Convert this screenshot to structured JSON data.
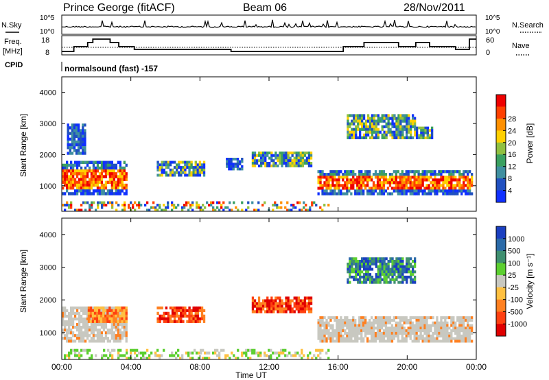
{
  "header": {
    "station": "Prince George (fitACF)",
    "beam": "Beam 06",
    "date": "28/Nov/2011"
  },
  "top_panels": {
    "nsky_label": "N.Sky",
    "nsky_ticks": [
      "10^5",
      "10^0"
    ],
    "nsearch_label": "N.Search",
    "nsearch_ticks": [
      "10^5",
      "10^0"
    ],
    "freq_label_1": "Freq.",
    "freq_label_2": "[MHz]",
    "freq_ticks": [
      "18",
      "8"
    ],
    "nave_label": "Nave",
    "nave_ticks": [
      "60",
      "0"
    ],
    "cpid_label": "CPID",
    "cpid_text": "normalsound (fast) -157"
  },
  "chart_data": [
    {
      "type": "heatmap",
      "name": "power",
      "ylabel": "Slant Range [km]",
      "xlabel": "Time UT",
      "ylim": [
        180,
        4500
      ],
      "xlim": [
        0,
        24
      ],
      "yticks": [
        "1000",
        "2000",
        "3000",
        "4000"
      ],
      "colorbar": {
        "label": "Power [dB]",
        "ticks": [
          "4",
          "8",
          "12",
          "16",
          "20",
          "24",
          "28"
        ],
        "colors": [
          "#1030ff",
          "#2050c0",
          "#3f8fa0",
          "#3aa060",
          "#90c040",
          "#ffd000",
          "#ff9000",
          "#ff4000",
          "#ee0000"
        ]
      },
      "regions": [
        {
          "t0": 0.0,
          "t1": 3.8,
          "r0": 700,
          "r1": 1800,
          "level": "high"
        },
        {
          "t0": 0.3,
          "t1": 1.4,
          "r0": 2000,
          "r1": 3000,
          "level": "low"
        },
        {
          "t0": 5.5,
          "t1": 8.3,
          "r0": 1300,
          "r1": 1800,
          "level": "mid"
        },
        {
          "t0": 9.5,
          "t1": 10.5,
          "r0": 1500,
          "r1": 1900,
          "level": "low"
        },
        {
          "t0": 11.0,
          "t1": 14.5,
          "r0": 1600,
          "r1": 2100,
          "level": "mid"
        },
        {
          "t0": 14.8,
          "t1": 23.8,
          "r0": 700,
          "r1": 1500,
          "level": "high"
        },
        {
          "t0": 16.5,
          "t1": 20.5,
          "r0": 2500,
          "r1": 3300,
          "level": "mid"
        },
        {
          "t0": 20.5,
          "t1": 21.5,
          "r0": 2500,
          "r1": 2900,
          "level": "mid"
        },
        {
          "t0": 0.0,
          "t1": 15.5,
          "r0": 180,
          "r1": 500,
          "level": "noise"
        }
      ]
    },
    {
      "type": "heatmap",
      "name": "velocity",
      "ylabel": "Slant Range [km]",
      "xlabel": "Time UT",
      "ylim": [
        180,
        4500
      ],
      "xlim": [
        0,
        24
      ],
      "yticks": [
        "1000",
        "2000",
        "3000",
        "4000"
      ],
      "xticks": [
        "00:00",
        "04:00",
        "08:00",
        "12:00",
        "16:00",
        "20:00",
        "00:00"
      ],
      "colorbar": {
        "label": "Velocity [m s⁻¹]",
        "ticks": [
          "1000",
          "500",
          "100",
          "25",
          "-25",
          "-100",
          "-500",
          "-1000"
        ],
        "colors": [
          "#1a3fc0",
          "#2a6aa8",
          "#3f8f70",
          "#5ccf30",
          "#c8c8c0",
          "#ffc040",
          "#ff8020",
          "#ff4010",
          "#e00000"
        ]
      },
      "regions": [
        {
          "t0": 0.0,
          "t1": 3.8,
          "r0": 700,
          "r1": 1800,
          "level": "ground"
        },
        {
          "t0": 1.5,
          "t1": 3.8,
          "r0": 1300,
          "r1": 1800,
          "level": "neg"
        },
        {
          "t0": 5.5,
          "t1": 8.3,
          "r0": 1300,
          "r1": 1800,
          "level": "negstrong"
        },
        {
          "t0": 11.0,
          "t1": 14.5,
          "r0": 1600,
          "r1": 2100,
          "level": "negstrong"
        },
        {
          "t0": 14.8,
          "t1": 23.8,
          "r0": 700,
          "r1": 1500,
          "level": "ground"
        },
        {
          "t0": 16.5,
          "t1": 20.5,
          "r0": 2500,
          "r1": 3300,
          "level": "pos"
        },
        {
          "t0": 0.0,
          "t1": 15.5,
          "r0": 180,
          "r1": 500,
          "level": "noise"
        }
      ]
    }
  ]
}
